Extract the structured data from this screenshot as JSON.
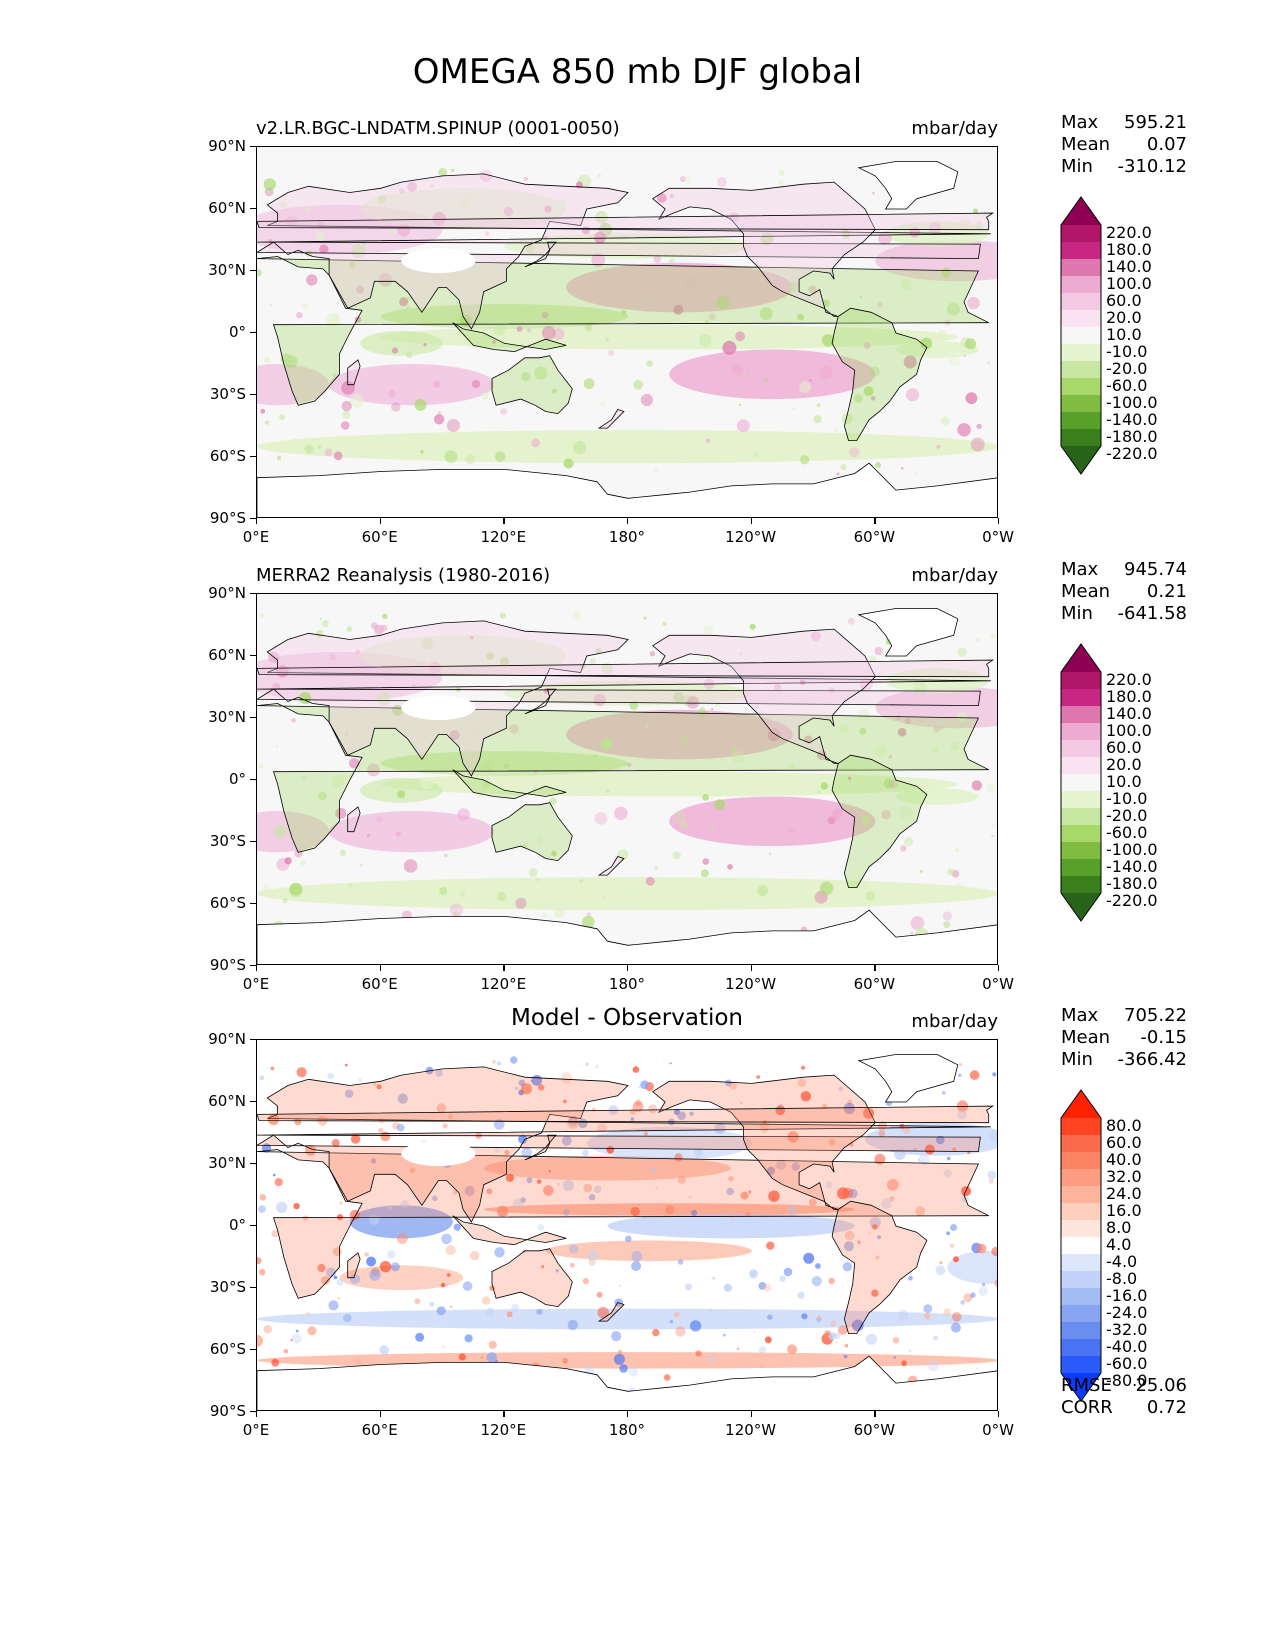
{
  "title": "OMEGA 850 mb DJF global",
  "x_ticks": [
    "0°E",
    "60°E",
    "120°E",
    "180°",
    "120°W",
    "60°W",
    "0°W"
  ],
  "y_ticks": [
    "90°N",
    "60°N",
    "30°N",
    "0°",
    "30°S",
    "60°S",
    "90°S"
  ],
  "panels": [
    {
      "title": "v2.LR.BGC-LNDATM.SPINUP (0001-0050)",
      "title_style": "left",
      "units": "mbar/day",
      "stats": {
        "max_label": "Max",
        "max": "595.21",
        "mean_label": "Mean",
        "mean": "0.07",
        "min_label": "Min",
        "min": "-310.12"
      },
      "colorbar": {
        "labels": [
          "220.0",
          "180.0",
          "140.0",
          "100.0",
          "60.0",
          "20.0",
          "10.0",
          "-10.0",
          "-20.0",
          "-60.0",
          "-100.0",
          "-140.0",
          "-180.0",
          "-220.0"
        ],
        "colors": [
          "#8e0152",
          "#b0176a",
          "#c72683",
          "#de77ae",
          "#eeabd2",
          "#f4c9e4",
          "#fae3f0",
          "#f7f7f7",
          "#e6f5d0",
          "#c8e7a2",
          "#a6d96a",
          "#7fbc41",
          "#58a02a",
          "#3b7f1c",
          "#276419"
        ]
      }
    },
    {
      "title": "MERRA2 Reanalysis (1980-2016)",
      "title_style": "left",
      "units": "mbar/day",
      "stats": {
        "max_label": "Max",
        "max": "945.74",
        "mean_label": "Mean",
        "mean": "0.21",
        "min_label": "Min",
        "min": "-641.58"
      },
      "colorbar": {
        "labels": [
          "220.0",
          "180.0",
          "140.0",
          "100.0",
          "60.0",
          "20.0",
          "10.0",
          "-10.0",
          "-20.0",
          "-60.0",
          "-100.0",
          "-140.0",
          "-180.0",
          "-220.0"
        ],
        "colors": [
          "#8e0152",
          "#b0176a",
          "#c72683",
          "#de77ae",
          "#eeabd2",
          "#f4c9e4",
          "#fae3f0",
          "#f7f7f7",
          "#e6f5d0",
          "#c8e7a2",
          "#a6d96a",
          "#7fbc41",
          "#58a02a",
          "#3b7f1c",
          "#276419"
        ]
      }
    },
    {
      "title": "Model - Observation",
      "title_style": "center",
      "units": "mbar/day",
      "stats": {
        "max_label": "Max",
        "max": "705.22",
        "mean_label": "Mean",
        "mean": "-0.15",
        "min_label": "Min",
        "min": "-366.42"
      },
      "colorbar": {
        "labels": [
          "80.0",
          "60.0",
          "40.0",
          "32.0",
          "24.0",
          "16.0",
          "8.0",
          "4.0",
          "-4.0",
          "-8.0",
          "-16.0",
          "-24.0",
          "-32.0",
          "-40.0",
          "-60.0",
          "-80.0"
        ],
        "colors": [
          "#ff2200",
          "#ff4422",
          "#fb6a4a",
          "#fc8464",
          "#fc9c80",
          "#fcb49c",
          "#fdcfbd",
          "#fee6dc",
          "#ffffff",
          "#dde6fb",
          "#c2d2f8",
          "#a4bcf4",
          "#87a5f0",
          "#6a8ef0",
          "#4a74f4",
          "#2a5af8",
          "#0a3cff"
        ]
      },
      "extra_stats": {
        "rmse_label": "RMSE",
        "rmse": "25.06",
        "corr_label": "CORR",
        "corr": "0.72"
      }
    }
  ]
}
